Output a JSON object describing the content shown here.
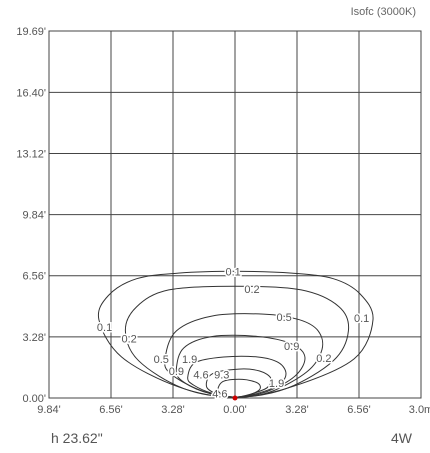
{
  "chart_data": {
    "type": "isolux contour",
    "legend": "Isofc (3000K)",
    "y_ticks": [
      "19.69'",
      "16.40'",
      "13.12'",
      "9.84'",
      "6.56'",
      "3.28'",
      "0.00'"
    ],
    "y_tick_values": [
      19.69,
      16.4,
      13.12,
      9.84,
      6.56,
      3.28,
      0.0
    ],
    "x_ticks": [
      "9.84'",
      "6.56'",
      "3.28'",
      "0.00'",
      "3.28'",
      "6.56'",
      "3.0m"
    ],
    "x_tick_values": [
      -9.84,
      -6.56,
      -3.28,
      0.0,
      3.28,
      6.56,
      9.84
    ],
    "xlim": [
      -9.84,
      9.84
    ],
    "ylim": [
      0,
      19.69
    ],
    "grid": true,
    "source_point": {
      "x": 0,
      "y": 0,
      "color": "#cc0000"
    },
    "contours": [
      {
        "level": 0.1,
        "points": [
          [
            -7.2,
            4.2
          ],
          [
            -6.7,
            5.5
          ],
          [
            -5.2,
            6.4
          ],
          [
            -3.0,
            6.7
          ],
          [
            0,
            6.8
          ],
          [
            3.0,
            6.7
          ],
          [
            5.2,
            6.4
          ],
          [
            6.6,
            5.6
          ],
          [
            7.3,
            4.2
          ],
          [
            6.3,
            2.1
          ],
          [
            3.0,
            0.6
          ],
          [
            0,
            0.05
          ],
          [
            -3.0,
            0.6
          ],
          [
            -6.0,
            2.2
          ],
          [
            -7.2,
            4.2
          ]
        ]
      },
      {
        "level": 0.2,
        "points": [
          [
            -5.8,
            3.6
          ],
          [
            -5.2,
            4.9
          ],
          [
            -3.5,
            5.8
          ],
          [
            0,
            6.0
          ],
          [
            3.5,
            5.8
          ],
          [
            5.5,
            4.9
          ],
          [
            6.0,
            3.6
          ],
          [
            5.2,
            2.0
          ],
          [
            2.7,
            0.5
          ],
          [
            0,
            0.05
          ],
          [
            -2.7,
            0.5
          ],
          [
            -5.1,
            2.0
          ],
          [
            -5.8,
            3.6
          ]
        ]
      },
      {
        "level": 0.5,
        "points": [
          [
            -3.7,
            2.1
          ],
          [
            -3.1,
            3.6
          ],
          [
            -1.2,
            4.4
          ],
          [
            1.5,
            4.5
          ],
          [
            3.4,
            4.2
          ],
          [
            4.4,
            3.6
          ],
          [
            4.6,
            2.6
          ],
          [
            3.8,
            1.4
          ],
          [
            1.8,
            0.3
          ],
          [
            0,
            0.05
          ],
          [
            -1.8,
            0.4
          ],
          [
            -3.4,
            1.3
          ],
          [
            -3.7,
            2.1
          ]
        ]
      },
      {
        "level": 0.9,
        "points": [
          [
            -3.1,
            1.6
          ],
          [
            -2.7,
            2.7
          ],
          [
            -1.2,
            3.3
          ],
          [
            1.2,
            3.3
          ],
          [
            3.0,
            2.9
          ],
          [
            3.7,
            2.2
          ],
          [
            3.2,
            1.2
          ],
          [
            1.7,
            0.35
          ],
          [
            0,
            0.05
          ],
          [
            -1.7,
            0.35
          ],
          [
            -2.9,
            1.0
          ],
          [
            -3.1,
            1.6
          ]
        ]
      },
      {
        "level": 1.9,
        "points": [
          [
            -2.5,
            1.1
          ],
          [
            -2.1,
            1.9
          ],
          [
            -0.6,
            2.2
          ],
          [
            1.2,
            2.2
          ],
          [
            2.3,
            1.9
          ],
          [
            2.7,
            1.3
          ],
          [
            2.3,
            0.7
          ],
          [
            1.2,
            0.25
          ],
          [
            0,
            0.05
          ],
          [
            -1.2,
            0.25
          ],
          [
            -2.2,
            0.7
          ],
          [
            -2.5,
            1.1
          ]
        ]
      },
      {
        "level": 4.6,
        "points": [
          [
            -1.5,
            0.6
          ],
          [
            -1.2,
            1.3
          ],
          [
            0.2,
            1.55
          ],
          [
            1.3,
            1.45
          ],
          [
            1.9,
            1.05
          ],
          [
            1.7,
            0.55
          ],
          [
            0.8,
            0.2
          ],
          [
            0,
            0.05
          ],
          [
            -0.9,
            0.2
          ],
          [
            -1.5,
            0.6
          ]
        ]
      },
      {
        "level": 9.3,
        "points": [
          [
            -0.9,
            0.45
          ],
          [
            -0.6,
            0.9
          ],
          [
            0.4,
            1.0
          ],
          [
            1.2,
            0.8
          ],
          [
            1.3,
            0.45
          ],
          [
            0.7,
            0.15
          ],
          [
            0,
            0.05
          ],
          [
            -0.6,
            0.15
          ],
          [
            -0.9,
            0.45
          ]
        ]
      }
    ],
    "contour_labels": [
      {
        "text": "0.1",
        "x": -0.1,
        "y": 6.8
      },
      {
        "text": "0.2",
        "x": 0.9,
        "y": 5.85
      },
      {
        "text": "0.5",
        "x": 2.6,
        "y": 4.35
      },
      {
        "text": "0.1",
        "x": 6.7,
        "y": 4.3
      },
      {
        "text": "0.1",
        "x": -6.9,
        "y": 3.8
      },
      {
        "text": "0.2",
        "x": -5.6,
        "y": 3.2
      },
      {
        "text": "0.9",
        "x": 3.0,
        "y": 2.8
      },
      {
        "text": "0.2",
        "x": 4.7,
        "y": 2.15
      },
      {
        "text": "0.5",
        "x": -3.9,
        "y": 2.1
      },
      {
        "text": "1.9",
        "x": -2.4,
        "y": 2.1
      },
      {
        "text": "0.9",
        "x": -3.1,
        "y": 1.45
      },
      {
        "text": "4.6",
        "x": -1.8,
        "y": 1.25
      },
      {
        "text": "9.3",
        "x": -0.7,
        "y": 1.25
      },
      {
        "text": "1.9",
        "x": 2.2,
        "y": 0.8
      },
      {
        "text": "4.6",
        "x": -0.8,
        "y": 0.25
      }
    ]
  },
  "footer": {
    "height": "h 23.62\"",
    "power": "4W"
  }
}
